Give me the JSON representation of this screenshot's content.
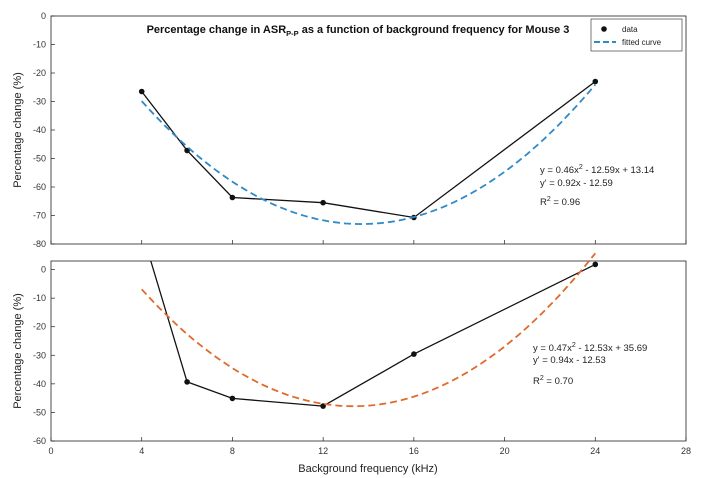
{
  "chart_data": [
    {
      "type": "line",
      "title_parts": [
        "Percentage change in ASR",
        "P-P",
        " as a function of background frequency for Mouse 3"
      ],
      "xlabel": "",
      "ylabel": "Percentage change (%)",
      "xlim": [
        0,
        28
      ],
      "ylim": [
        -80,
        0
      ],
      "xticks": [
        0,
        4,
        8,
        12,
        16,
        20,
        24,
        28
      ],
      "yticks": [
        0,
        -10,
        -20,
        -30,
        -40,
        -50,
        -60,
        -70,
        -80
      ],
      "series": [
        {
          "name": "data",
          "x": [
            4,
            6,
            8,
            12,
            16,
            24
          ],
          "y": [
            -26.5,
            -47.2,
            -63.7,
            -65.5,
            -70.7,
            -23.0
          ],
          "color": "#111111"
        },
        {
          "name": "fitted curve",
          "fit": [
            0.46,
            -12.59,
            13.14
          ],
          "x_range": [
            4,
            24
          ],
          "color": "#2e8bc8",
          "dashed": true
        }
      ],
      "legend_position": "top-right",
      "annotations": {
        "eq1_a": "y = 0.46x",
        "eq1_b": " - 12.59x + 13.14",
        "eq2": "y' = 0.92x - 12.59",
        "r2_a": "R",
        "r2_b": " = 0.96",
        "sup": "2"
      }
    },
    {
      "type": "line",
      "xlabel": "Background frequency (kHz)",
      "ylabel": "Percentage change (%)",
      "xlim": [
        0,
        28
      ],
      "ylim": [
        -60,
        3
      ],
      "xticks": [
        0,
        4,
        8,
        12,
        16,
        20,
        24,
        28
      ],
      "yticks": [
        0,
        -10,
        -20,
        -30,
        -40,
        -50,
        -60
      ],
      "series": [
        {
          "name": "data",
          "x": [
            4.4,
            6,
            8,
            12,
            16,
            24
          ],
          "y": [
            3.0,
            -39.3,
            -45.1,
            -47.8,
            -29.6,
            1.8
          ],
          "color": "#111111",
          "marker_skip_first": true
        },
        {
          "name": "fitted curve",
          "fit": [
            0.47,
            -12.53,
            35.69
          ],
          "x_range": [
            4,
            24
          ],
          "color": "#e06a2c",
          "dashed": true
        }
      ],
      "annotations": {
        "eq1_a": "y = 0.47x",
        "eq1_b": " - 12.53x + 35.69",
        "eq2": "y' = 0.94x - 12.53",
        "r2_a": "R",
        "r2_b": " = 0.70",
        "sup": "2"
      }
    }
  ],
  "legend": {
    "data_label": "data",
    "fit_label": "fitted curve"
  }
}
